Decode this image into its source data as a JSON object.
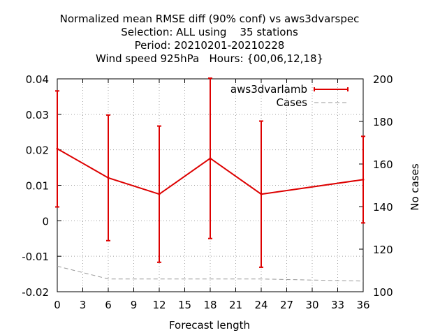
{
  "chart_data": {
    "type": "line",
    "title_lines": [
      "Normalized mean RMSE diff (90% conf) vs aws3dvarspec",
      "Selection: ALL using    35 stations",
      "Period: 20210201-20210228",
      "Wind speed 925hPa   Hours: {00,06,12,18}"
    ],
    "xlabel": "Forecast length",
    "ylabel": "",
    "y2label": "No cases",
    "xlim": [
      0,
      36
    ],
    "ylim": [
      -0.02,
      0.04
    ],
    "y2lim": [
      100,
      200
    ],
    "xticks": [
      "0",
      "3",
      "6",
      "9",
      "12",
      "15",
      "18",
      "21",
      "24",
      "27",
      "30",
      "33",
      "36"
    ],
    "yticks": [
      "0.04",
      "0.03",
      "0.02",
      "0.01",
      "0",
      "-0.01",
      "-0.02"
    ],
    "y2ticks": [
      "200",
      "180",
      "160",
      "140",
      "120",
      "100"
    ],
    "grid": true,
    "legend_position": "top-right",
    "series": [
      {
        "name": "aws3dvarlamb",
        "color": "#dd0000",
        "style": "line-with-errorbars",
        "axis": "y",
        "x": [
          0,
          6,
          12,
          18,
          24,
          36
        ],
        "y": [
          0.0203,
          0.0121,
          0.0075,
          0.0176,
          0.0075,
          0.0116
        ],
        "y_low": [
          0.0039,
          -0.0056,
          -0.0117,
          -0.005,
          -0.0131,
          -0.0006
        ],
        "y_high": [
          0.0366,
          0.0298,
          0.0267,
          0.0402,
          0.0281,
          0.0238
        ]
      },
      {
        "name": "Cases",
        "color": "#999999",
        "style": "dashed",
        "axis": "y2",
        "x": [
          0,
          6,
          12,
          18,
          24,
          36
        ],
        "y": [
          112,
          106,
          106,
          106,
          106,
          105
        ]
      }
    ]
  }
}
